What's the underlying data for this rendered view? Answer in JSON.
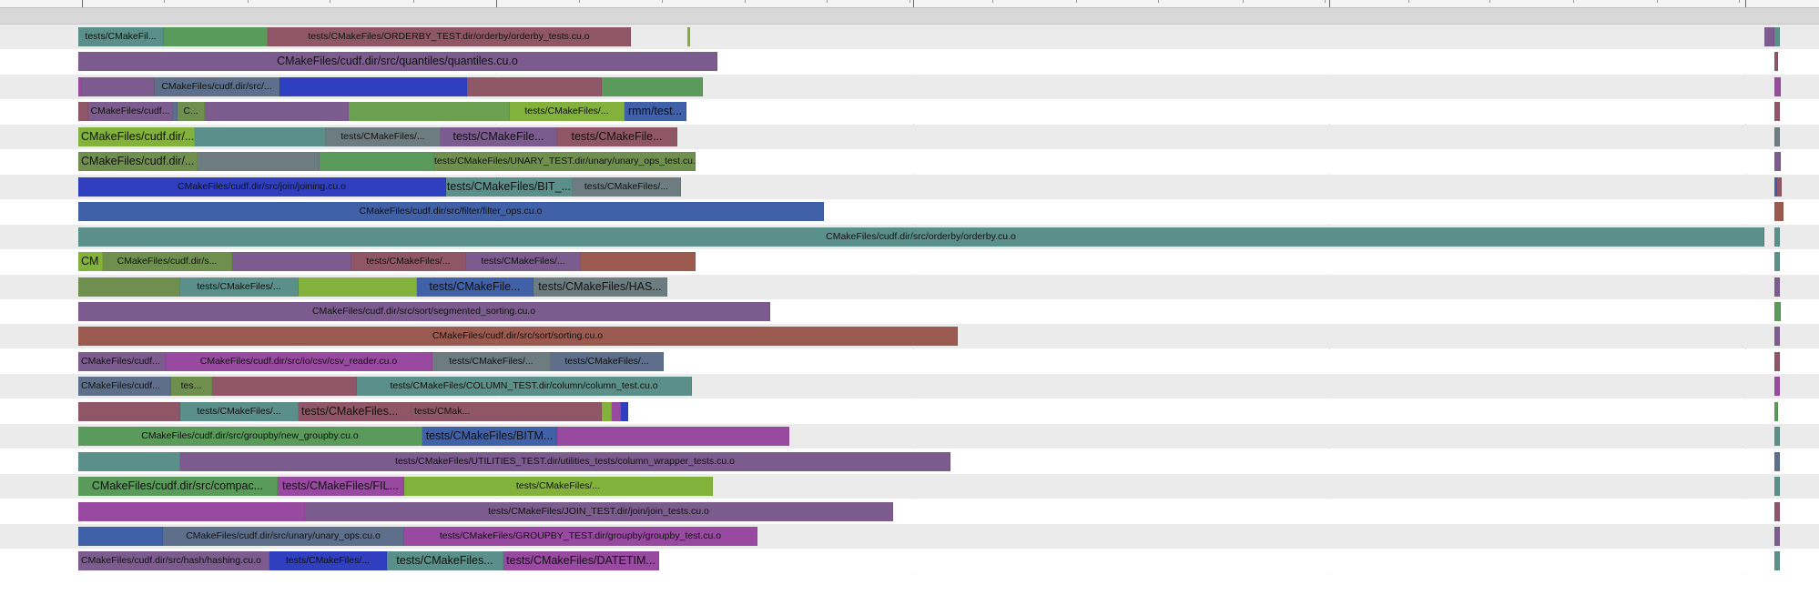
{
  "colors": {
    "teal": "#5a8f8a",
    "purple": "#7c5b8f",
    "rose": "#8f5668",
    "blue": "#4060a8",
    "royal": "#2f3fc0",
    "lime": "#82b23c",
    "green": "#5a9a5a",
    "olive": "#6f8f4f",
    "slate": "#5d6f8a",
    "gray": "#6c7c80",
    "magenta": "#984aa0",
    "terra": "#9a5a50",
    "grass": "#6aa050",
    "steel": "#607aa0"
  },
  "rows": [
    {
      "segments": [
        {
          "label": "tests/CMakeFil...",
          "color": "teal"
        },
        {
          "label": "",
          "color": "green"
        },
        {
          "label": "tests/CMakeFiles/ORDERBY_TEST.dir/orderby/orderby_tests.cu.o",
          "color": "rose"
        },
        {
          "label": "",
          "color": "lime"
        },
        {
          "label": "",
          "color": "purple"
        },
        {
          "label": "",
          "color": "teal"
        }
      ]
    },
    {
      "segments": [
        {
          "label": "CMakeFiles/cudf.dir/src/quantiles/quantiles.cu.o",
          "color": "purple"
        },
        {
          "label": "",
          "color": "rose"
        }
      ]
    },
    {
      "segments": [
        {
          "label": "",
          "color": "magenta"
        },
        {
          "label": "",
          "color": "purple"
        },
        {
          "label": "CMakeFiles/cudf.dir/src/...",
          "color": "slate"
        },
        {
          "label": "",
          "color": "royal"
        },
        {
          "label": "",
          "color": "rose"
        },
        {
          "label": "",
          "color": "green"
        },
        {
          "label": "",
          "color": "magenta"
        }
      ]
    },
    {
      "segments": [
        {
          "label": "",
          "color": "rose"
        },
        {
          "label": "CMakeFiles/cudf...",
          "color": "purple"
        },
        {
          "label": "",
          "color": "slate"
        },
        {
          "label": "C...",
          "color": "olive"
        },
        {
          "label": "",
          "color": "purple"
        },
        {
          "label": "",
          "color": "grass"
        },
        {
          "label": "tests/CMakeFiles/...",
          "color": "lime"
        },
        {
          "label": "rmm/test...",
          "color": "blue"
        },
        {
          "label": "",
          "color": "rose"
        }
      ]
    },
    {
      "segments": [
        {
          "label": "CMakeFiles/cudf.dir/...",
          "color": "lime"
        },
        {
          "label": "",
          "color": "teal"
        },
        {
          "label": "tests/CMakeFiles/...",
          "color": "gray"
        },
        {
          "label": "tests/CMakeFile...",
          "color": "purple"
        },
        {
          "label": "tests/CMakeFile...",
          "color": "rose"
        },
        {
          "label": "",
          "color": "gray"
        }
      ]
    },
    {
      "segments": [
        {
          "label": "CMakeFiles/cudf.dir/...",
          "color": "olive"
        },
        {
          "label": "",
          "color": "gray"
        },
        {
          "label": "",
          "color": "green"
        },
        {
          "label": "tests/CMakeFiles/UNARY_TEST.dir/unary/unary_ops_test.cu.o",
          "color": "olive"
        },
        {
          "label": "",
          "color": "purple"
        }
      ]
    },
    {
      "segments": [
        {
          "label": "CMakeFiles/cudf.dir/src/join/joining.cu.o",
          "color": "royal"
        },
        {
          "label": "tests/CMakeFiles/BIT_...",
          "color": "teal"
        },
        {
          "label": "tests/CMakeFiles/...",
          "color": "gray"
        },
        {
          "label": "",
          "color": "blue"
        },
        {
          "label": "",
          "color": "rose"
        }
      ]
    },
    {
      "segments": [
        {
          "label": "CMakeFiles/cudf.dir/src/filter/filter_ops.cu.o",
          "color": "blue"
        },
        {
          "label": "",
          "color": "terra"
        }
      ]
    },
    {
      "segments": [
        {
          "label": "CMakeFiles/cudf.dir/src/orderby/orderby.cu.o",
          "color": "teal"
        },
        {
          "label": "",
          "color": "teal"
        }
      ]
    },
    {
      "segments": [
        {
          "label": "CM",
          "color": "lime"
        },
        {
          "label": "CMakeFiles/cudf.dir/s...",
          "color": "olive"
        },
        {
          "label": "",
          "color": "purple"
        },
        {
          "label": "tests/CMakeFiles/...",
          "color": "rose"
        },
        {
          "label": "tests/CMakeFiles/...",
          "color": "purple"
        },
        {
          "label": "",
          "color": "terra"
        },
        {
          "label": "",
          "color": "teal"
        }
      ]
    },
    {
      "segments": [
        {
          "label": "",
          "color": "olive"
        },
        {
          "label": "tests/CMakeFiles/...",
          "color": "teal"
        },
        {
          "label": "",
          "color": "lime"
        },
        {
          "label": "tests/CMakeFile...",
          "color": "blue"
        },
        {
          "label": "tests/CMakeFiles/HAS...",
          "color": "gray"
        },
        {
          "label": "",
          "color": "purple"
        }
      ]
    },
    {
      "segments": [
        {
          "label": "CMakeFiles/cudf.dir/src/sort/segmented_sorting.cu.o",
          "color": "purple"
        },
        {
          "label": "",
          "color": "green"
        }
      ]
    },
    {
      "segments": [
        {
          "label": "CMakeFiles/cudf.dir/src/sort/sorting.cu.o",
          "color": "terra"
        },
        {
          "label": "",
          "color": "purple"
        }
      ]
    },
    {
      "segments": [
        {
          "label": "CMakeFiles/cudf...",
          "color": "purple"
        },
        {
          "label": "CMakeFiles/cudf.dir/src/io/csv/csv_reader.cu.o",
          "color": "magenta"
        },
        {
          "label": "tests/CMakeFiles/...",
          "color": "gray"
        },
        {
          "label": "tests/CMakeFiles/...",
          "color": "slate"
        },
        {
          "label": "",
          "color": "rose"
        }
      ]
    },
    {
      "segments": [
        {
          "label": "CMakeFiles/cudf...",
          "color": "slate"
        },
        {
          "label": "tes...",
          "color": "olive"
        },
        {
          "label": "",
          "color": "rose"
        },
        {
          "label": "tests/CMakeFiles/COLUMN_TEST.dir/column/column_test.cu.o",
          "color": "teal"
        },
        {
          "label": "",
          "color": "magenta"
        }
      ]
    },
    {
      "segments": [
        {
          "label": "",
          "color": "rose"
        },
        {
          "label": "tests/CMakeFiles/...",
          "color": "teal"
        },
        {
          "label": "tests/CMakeFiles...",
          "color": "rose"
        },
        {
          "label": "tests/CMak...",
          "color": "rose"
        },
        {
          "label": "",
          "color": "lime"
        },
        {
          "label": "",
          "color": "magenta"
        },
        {
          "label": "",
          "color": "royal"
        },
        {
          "label": "",
          "color": "green"
        }
      ]
    },
    {
      "segments": [
        {
          "label": "CMakeFiles/cudf.dir/src/groupby/new_groupby.cu.o",
          "color": "green"
        },
        {
          "label": "tests/CMakeFiles/BITM...",
          "color": "blue"
        },
        {
          "label": "",
          "color": "magenta"
        },
        {
          "label": "",
          "color": "teal"
        }
      ]
    },
    {
      "segments": [
        {
          "label": "",
          "color": "teal"
        },
        {
          "label": "tests/CMakeFiles/UTILITIES_TEST.dir/utilities_tests/column_wrapper_tests.cu.o",
          "color": "purple"
        },
        {
          "label": "",
          "color": "slate"
        }
      ]
    },
    {
      "segments": [
        {
          "label": "CMakeFiles/cudf.dir/src/compac...",
          "color": "green"
        },
        {
          "label": "tests/CMakeFiles/FIL...",
          "color": "magenta"
        },
        {
          "label": "tests/CMakeFiles/...",
          "color": "lime"
        },
        {
          "label": "",
          "color": "teal"
        }
      ]
    },
    {
      "segments": [
        {
          "label": "",
          "color": "magenta"
        },
        {
          "label": "tests/CMakeFiles/JOIN_TEST.dir/join/join_tests.cu.o",
          "color": "purple"
        },
        {
          "label": "",
          "color": "rose"
        }
      ]
    },
    {
      "segments": [
        {
          "label": "",
          "color": "blue"
        },
        {
          "label": "CMakeFiles/cudf.dir/src/unary/unary_ops.cu.o",
          "color": "slate"
        },
        {
          "label": "tests/CMakeFiles/GROUPBY_TEST.dir/groupby/groupby_test.cu.o",
          "color": "magenta"
        },
        {
          "label": "",
          "color": "purple"
        }
      ]
    },
    {
      "segments": [
        {
          "label": "CMakeFiles/cudf.dir/src/hash/hashing.cu.o",
          "color": "purple"
        },
        {
          "label": "tests/CMakeFiles/...",
          "color": "royal"
        },
        {
          "label": "tests/CMakeFiles...",
          "color": "teal"
        },
        {
          "label": "tests/CMakeFiles/DATETIM...",
          "color": "magenta"
        },
        {
          "label": "",
          "color": "teal"
        }
      ]
    }
  ]
}
